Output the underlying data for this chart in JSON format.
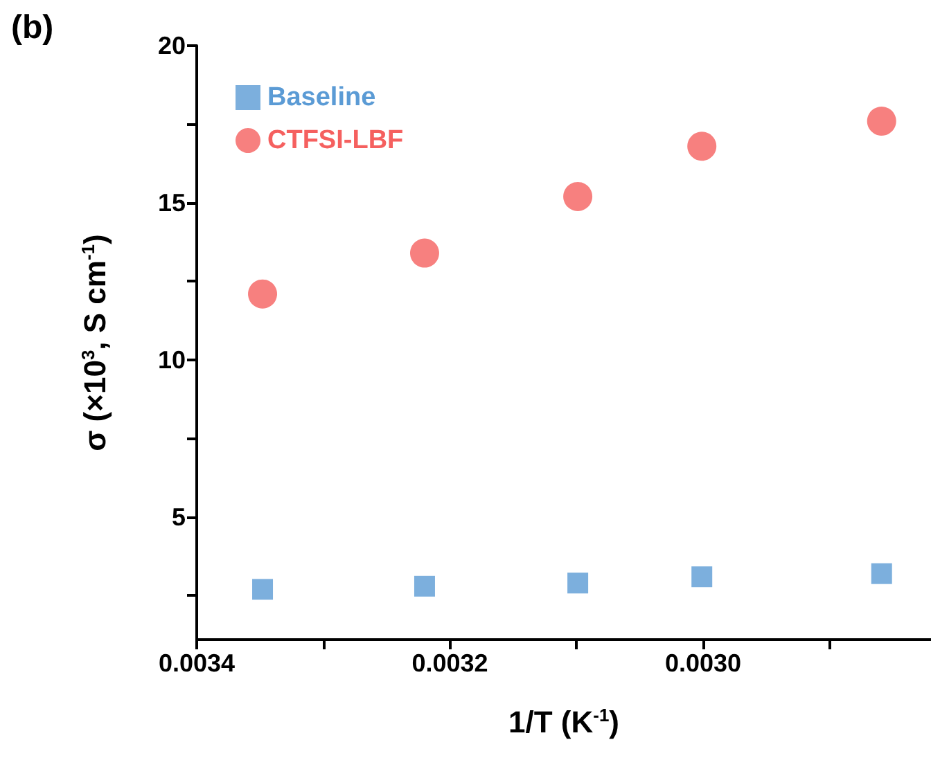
{
  "chart_data": {
    "type": "scatter",
    "annotations": [
      "(b)"
    ],
    "xlabel": "1/T (K$^{-1}$)",
    "ylabel": "σ (×10$^{3}$, S cm$^{-1}$)",
    "xlim": [
      0.0034,
      0.00282
    ],
    "xticks": [
      0.0034,
      {
        "value": 0.0033,
        "label": null
      },
      0.0032,
      {
        "value": 0.0031,
        "label": null
      },
      {
        "value": 0.003,
        "label": "0.0030"
      },
      {
        "value": 0.0029,
        "label": null
      }
    ],
    "ylim": [
      1.1,
      20
    ],
    "yticks": [
      {
        "value": 2.5,
        "label": null
      },
      5,
      {
        "value": 7.5,
        "label": null
      },
      10,
      {
        "value": 12.5,
        "label": null
      },
      15,
      {
        "value": 17.5,
        "label": null
      },
      20
    ],
    "grid": false,
    "legend": "top left",
    "series": [
      {
        "name": "Baseline",
        "color": "#5b9bd5",
        "marker": "square",
        "x": [
          0.003348,
          0.00322,
          0.003099,
          0.003001,
          0.002859
        ],
        "values": [
          2.7,
          2.8,
          2.9,
          3.1,
          3.2
        ]
      },
      {
        "name": "CTFSI-LBF",
        "color": "#f5605f",
        "marker": "circle",
        "x": [
          0.003348,
          0.00322,
          0.003099,
          0.003001,
          0.002859
        ],
        "values": [
          12.1,
          13.4,
          15.2,
          16.8,
          17.6
        ]
      }
    ]
  }
}
